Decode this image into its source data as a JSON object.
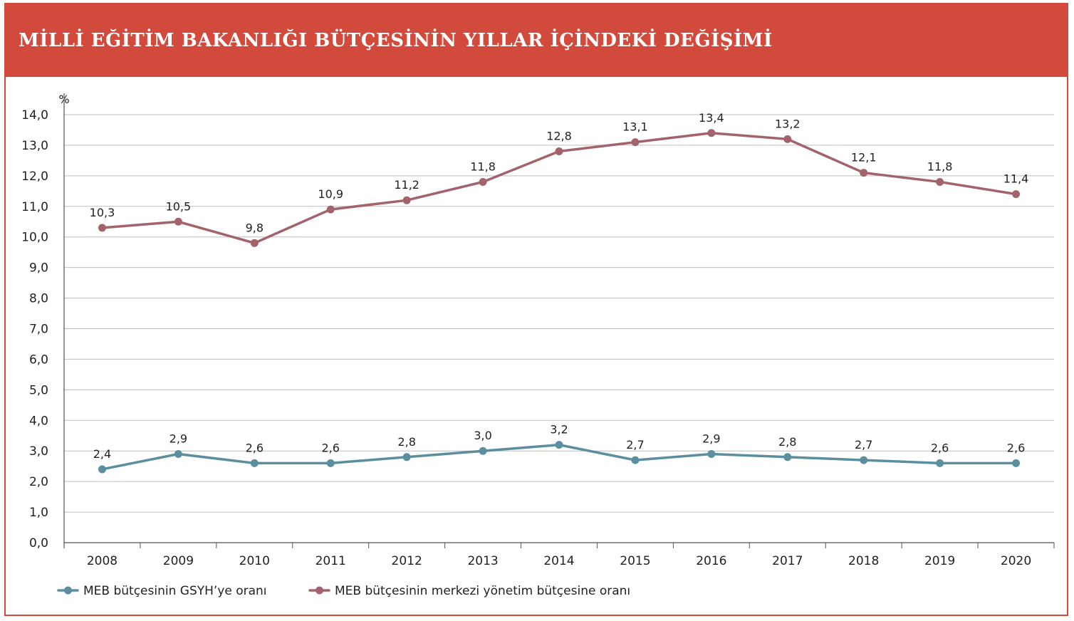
{
  "header": {
    "title": "MİLLİ EĞİTİM BAKANLIĞI BÜTÇESİNİN YILLAR İÇİNDEKİ DEĞİŞİMİ"
  },
  "colors": {
    "header_bg": "#d24a3c",
    "series_gdp": "#5b8fa0",
    "series_budget": "#a3636c",
    "grid": "#bdbdbd",
    "axis": "#555555"
  },
  "chart_data": {
    "type": "line",
    "title": "MİLLİ EĞİTİM BAKANLIĞI BÜTÇESİNİN YILLAR İÇİNDEKİ DEĞİŞİMİ",
    "ylabel": "%",
    "xlabel": "",
    "ylim": [
      0,
      14
    ],
    "yticks": [
      "0,0",
      "1,0",
      "2,0",
      "3,0",
      "4,0",
      "5,0",
      "6,0",
      "7,0",
      "8,0",
      "9,0",
      "10,0",
      "11,0",
      "12,0",
      "13,0",
      "14,0"
    ],
    "categories": [
      "2008",
      "2009",
      "2010",
      "2011",
      "2012",
      "2013",
      "2014",
      "2015",
      "2016",
      "2017",
      "2018",
      "2019",
      "2020"
    ],
    "grid": "horizontal",
    "legend_position": "bottom-left",
    "series": [
      {
        "name": "MEB bütçesinin GSYH’ye oranı",
        "values": [
          2.4,
          2.9,
          2.6,
          2.6,
          2.8,
          3.0,
          3.2,
          2.7,
          2.9,
          2.8,
          2.7,
          2.6,
          2.6
        ],
        "labels": [
          "2,4",
          "2,9",
          "2,6",
          "2,6",
          "2,8",
          "3,0",
          "3,2",
          "2,7",
          "2,9",
          "2,8",
          "2,7",
          "2,6",
          "2,6"
        ]
      },
      {
        "name": "MEB bütçesinin merkezi yönetim bütçesine oranı",
        "values": [
          10.3,
          10.5,
          9.8,
          10.9,
          11.2,
          11.8,
          12.8,
          13.1,
          13.4,
          13.2,
          12.1,
          11.8,
          11.4
        ],
        "labels": [
          "10,3",
          "10,5",
          "9,8",
          "10,9",
          "11,2",
          "11,8",
          "12,8",
          "13,1",
          "13,4",
          "13,2",
          "12,1",
          "11,8",
          "11,4"
        ]
      }
    ]
  }
}
